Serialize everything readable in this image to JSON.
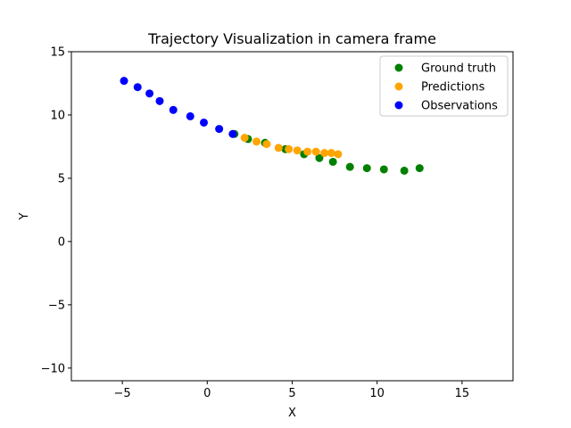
{
  "chart_data": {
    "type": "scatter",
    "title": "Trajectory Visualization in camera frame",
    "xlabel": "X",
    "ylabel": "Y",
    "xlim": [
      -8,
      18
    ],
    "ylim": [
      -11,
      15
    ],
    "xticks": [
      -5,
      0,
      5,
      10,
      15
    ],
    "yticks": [
      -10,
      -5,
      0,
      5,
      10,
      15
    ],
    "xtick_labels": [
      "−5",
      "0",
      "5",
      "10",
      "15"
    ],
    "ytick_labels": [
      "−10",
      "−5",
      "0",
      "5",
      "10",
      "15"
    ],
    "grid": false,
    "legend_position": "top-right",
    "series": [
      {
        "name": "Ground truth",
        "color": "#008000",
        "points": [
          [
            1.6,
            8.5
          ],
          [
            2.4,
            8.1
          ],
          [
            3.4,
            7.8
          ],
          [
            4.6,
            7.3
          ],
          [
            5.7,
            6.9
          ],
          [
            6.6,
            6.6
          ],
          [
            7.4,
            6.3
          ],
          [
            8.4,
            5.9
          ],
          [
            9.4,
            5.8
          ],
          [
            10.4,
            5.7
          ],
          [
            11.6,
            5.6
          ],
          [
            12.5,
            5.8
          ]
        ]
      },
      {
        "name": "Predictions",
        "color": "#FFA500",
        "points": [
          [
            1.5,
            8.5
          ],
          [
            2.2,
            8.2
          ],
          [
            2.9,
            7.9
          ],
          [
            3.5,
            7.7
          ],
          [
            4.2,
            7.4
          ],
          [
            4.8,
            7.3
          ],
          [
            5.3,
            7.2
          ],
          [
            5.9,
            7.1
          ],
          [
            6.4,
            7.1
          ],
          [
            6.9,
            7.0
          ],
          [
            7.3,
            7.0
          ],
          [
            7.7,
            6.9
          ]
        ]
      },
      {
        "name": "Observations",
        "color": "#0000FF",
        "points": [
          [
            -4.9,
            12.7
          ],
          [
            -4.1,
            12.2
          ],
          [
            -3.4,
            11.7
          ],
          [
            -2.8,
            11.1
          ],
          [
            -2.0,
            10.4
          ],
          [
            -1.0,
            9.9
          ],
          [
            -0.2,
            9.4
          ],
          [
            0.7,
            8.9
          ],
          [
            1.5,
            8.5
          ]
        ]
      }
    ]
  }
}
